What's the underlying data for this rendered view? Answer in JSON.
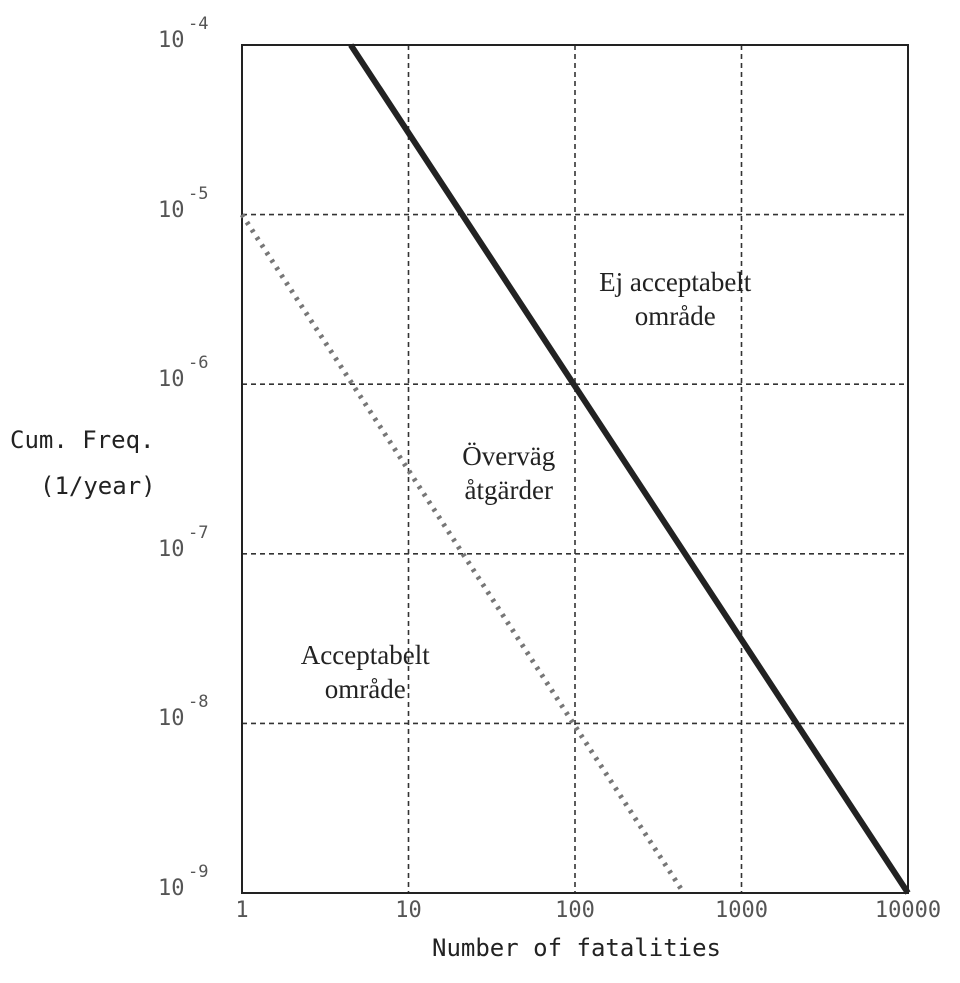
{
  "chart_data": {
    "type": "line",
    "x_scale": "log",
    "y_scale": "log",
    "xlim": [
      1,
      10000
    ],
    "ylim": [
      1e-09,
      0.0001
    ],
    "grid": true,
    "xlabel": "Number of fatalities",
    "ylabel_line1": "Cum. Freq.",
    "ylabel_line2": "(1/year)",
    "x_ticks": [
      "1",
      "10",
      "100",
      "1000",
      "10000"
    ],
    "y_ticks": [
      {
        "base": "10",
        "exp": "-4"
      },
      {
        "base": "10",
        "exp": "-5"
      },
      {
        "base": "10",
        "exp": "-6"
      },
      {
        "base": "10",
        "exp": "-7"
      },
      {
        "base": "10",
        "exp": "-8"
      },
      {
        "base": "10",
        "exp": "-9"
      }
    ],
    "series": [
      {
        "style": "solid",
        "color": "#222222",
        "x": [
          4.5,
          10000
        ],
        "y": [
          0.0001,
          1e-09
        ]
      },
      {
        "style": "dotted",
        "color": "#777777",
        "x": [
          1,
          450
        ],
        "y": [
          1e-05,
          1e-09
        ]
      }
    ],
    "annotations": [
      {
        "line1": "Ej acceptabelt",
        "line2": "område",
        "x": 400,
        "y": 3.2e-06
      },
      {
        "line1": "Överväg",
        "line2": "åtgärder",
        "x": 40,
        "y": 3e-07
      },
      {
        "line1": "Acceptabelt",
        "line2": "område",
        "x": 5.5,
        "y": 2e-08
      }
    ]
  }
}
